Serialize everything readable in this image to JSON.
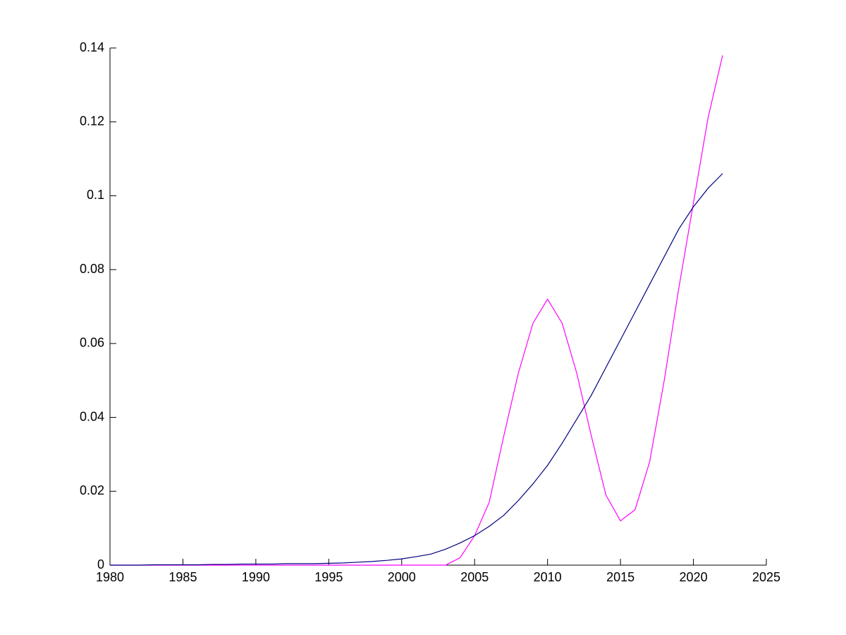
{
  "chart_data": {
    "type": "line",
    "x": [
      1980,
      1981,
      1982,
      1983,
      1984,
      1985,
      1986,
      1987,
      1988,
      1989,
      1990,
      1991,
      1992,
      1993,
      1994,
      1995,
      1996,
      1997,
      1998,
      1999,
      2000,
      2001,
      2002,
      2003,
      2004,
      2005,
      2006,
      2007,
      2008,
      2009,
      2010,
      2011,
      2012,
      2013,
      2014,
      2015,
      2016,
      2017,
      2018,
      2019,
      2020,
      2021,
      2022
    ],
    "series": [
      {
        "color": "#ff00ff",
        "values": [
          0,
          0,
          0,
          0,
          0,
          0,
          0,
          0,
          0,
          0,
          0,
          0,
          0,
          0,
          0,
          0,
          0,
          0,
          0,
          0,
          0,
          0,
          0,
          0,
          0.002,
          0.008,
          0.017,
          0.035,
          0.052,
          0.0655,
          0.072,
          0.0655,
          0.052,
          0.035,
          0.019,
          0.012,
          0.015,
          0.028,
          0.05,
          0.075,
          0.098,
          0.121,
          0.138
        ]
      },
      {
        "color": "#000080",
        "values": [
          0,
          0,
          0,
          0.0001,
          0.0001,
          0.0001,
          0.0001,
          0.0002,
          0.0002,
          0.0003,
          0.0003,
          0.0003,
          0.0004,
          0.0004,
          0.0004,
          0.0005,
          0.0006,
          0.0008,
          0.001,
          0.0013,
          0.0017,
          0.0023,
          0.003,
          0.0043,
          0.006,
          0.008,
          0.0105,
          0.0135,
          0.0175,
          0.022,
          0.027,
          0.033,
          0.0395,
          0.046,
          0.0535,
          0.061,
          0.0685,
          0.076,
          0.0835,
          0.091,
          0.097,
          0.102,
          0.106
        ]
      }
    ],
    "xlim": [
      1980,
      2025
    ],
    "xticks": [
      1980,
      1985,
      1990,
      1995,
      2000,
      2005,
      2010,
      2015,
      2020,
      2025
    ],
    "ylim": [
      0,
      0.14
    ],
    "yticks": [
      0,
      0.02,
      0.04,
      0.06,
      0.08,
      0.1,
      0.12,
      0.14
    ],
    "grid": false
  }
}
